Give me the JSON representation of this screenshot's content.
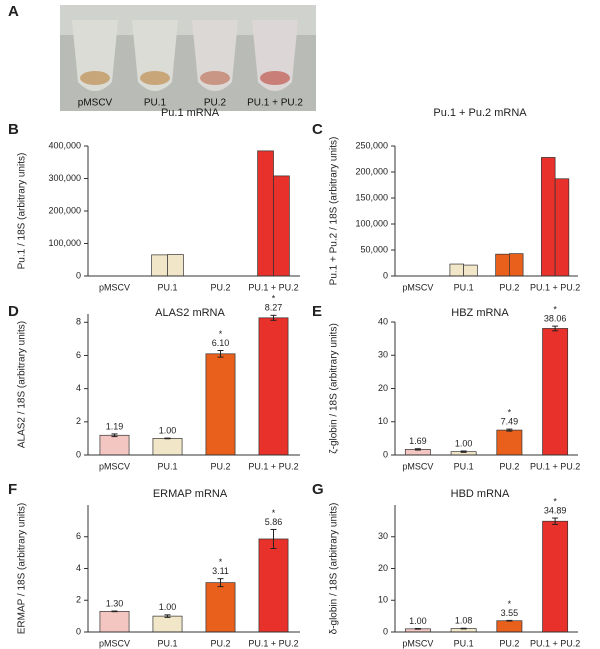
{
  "photo": {
    "panel": "A",
    "labels": [
      "pMSCV",
      "PU.1",
      "PU.2",
      "PU.1 + PU.2"
    ]
  },
  "chart_data": [
    {
      "type": "bar",
      "panel": "B",
      "title": "Pu.1 mRNA",
      "y_label": "Pu.1 / 18S (arbitrary units)",
      "categories": [
        "pMSCV",
        "PU.1",
        "PU.2",
        "PU.1 + PU.2"
      ],
      "colors": [
        "#f4c6c2",
        "#f2e6c8",
        "#e8601c",
        "#e8312a"
      ],
      "values": [
        [
          0,
          0
        ],
        [
          65000,
          66000
        ],
        [
          0,
          0
        ],
        [
          385000,
          308000
        ]
      ],
      "ylim": [
        0,
        400000
      ],
      "yticks": [
        0,
        {
          "value": 100000,
          "label": "100,000"
        },
        {
          "value": 200000,
          "label": "200,000"
        },
        {
          "value": 300000,
          "label": "300,000"
        },
        {
          "value": 400000,
          "label": "400,000"
        }
      ]
    },
    {
      "type": "bar",
      "panel": "C",
      "title": "Pu.1 + Pu.2 mRNA",
      "y_label": "Pu.1 + Pu.2 / 18S (arbitrary units)",
      "categories": [
        "pMSCV",
        "PU.1",
        "PU.2",
        "PU.1 + PU.2"
      ],
      "colors": [
        "#f4c6c2",
        "#f2e6c8",
        "#e8601c",
        "#e8312a"
      ],
      "values": [
        [
          0,
          0
        ],
        [
          23000,
          21000
        ],
        [
          42000,
          43000
        ],
        [
          228000,
          187000
        ]
      ],
      "ylim": [
        0,
        250000
      ],
      "yticks": [
        0,
        {
          "value": 50000,
          "label": "50,000"
        },
        {
          "value": 100000,
          "label": "100,000"
        },
        {
          "value": 150000,
          "label": "150,000"
        },
        {
          "value": 200000,
          "label": "200,000"
        },
        {
          "value": 250000,
          "label": "250,000"
        }
      ]
    },
    {
      "type": "bar",
      "panel": "D",
      "title": "ALAS2 mRNA",
      "y_label": "ALAS2 / 18S (arbitrary units)",
      "categories": [
        "pMSCV",
        "PU.1",
        "PU.2",
        "PU.1 + PU.2"
      ],
      "colors": [
        "#f4c6c2",
        "#f2e6c8",
        "#e8601c",
        "#e8312a"
      ],
      "values": [
        1.19,
        1.0,
        6.1,
        8.27
      ],
      "value_labels": [
        "1.19",
        "1.00",
        "6.10",
        "8.27"
      ],
      "errors": [
        0.08,
        0.02,
        0.2,
        0.15
      ],
      "marker": "*",
      "significant": [
        false,
        false,
        true,
        true
      ],
      "ylim": [
        0,
        8.5
      ],
      "yticks": [
        0,
        2,
        4,
        6,
        8
      ]
    },
    {
      "type": "bar",
      "panel": "E",
      "title": "HBZ mRNA",
      "y_label": "ζ-globin / 18S (arbitrary units)",
      "categories": [
        "pMSCV",
        "PU.1",
        "PU.2",
        "PU.1 + PU.2"
      ],
      "colors": [
        "#f4c6c2",
        "#f2e6c8",
        "#e8601c",
        "#e8312a"
      ],
      "values": [
        1.69,
        1.0,
        7.49,
        38.06
      ],
      "value_labels": [
        "1.69",
        "1.00",
        "7.49",
        "38.06"
      ],
      "errors": [
        0.2,
        0.2,
        0.3,
        0.7
      ],
      "marker": "*",
      "significant": [
        false,
        false,
        true,
        true
      ],
      "ylim": [
        0,
        40
      ],
      "yticks": [
        0,
        10,
        20,
        30,
        40
      ]
    },
    {
      "type": "bar",
      "panel": "F",
      "title": "ERMAP mRNA",
      "y_label": "ERMAP / 18S (arbitrary units)",
      "categories": [
        "pMSCV",
        "PU.1",
        "PU.2",
        "PU.1 + PU.2"
      ],
      "colors": [
        "#f4c6c2",
        "#f2e6c8",
        "#e8601c",
        "#e8312a"
      ],
      "values": [
        1.3,
        1.0,
        3.11,
        5.86
      ],
      "value_labels": [
        "1.30",
        "1.00",
        "3.11",
        "5.86"
      ],
      "errors": [
        0.02,
        0.08,
        0.25,
        0.6
      ],
      "marker": "*",
      "significant": [
        false,
        false,
        true,
        true
      ],
      "ylim": [
        0,
        8
      ],
      "yticks": [
        0,
        2,
        4,
        6
      ]
    },
    {
      "type": "bar",
      "panel": "G",
      "title": "HBD mRNA",
      "y_label": "δ-globin / 18S (arbitrary units)",
      "categories": [
        "pMSCV",
        "PU.1",
        "PU.2",
        "PU.1 + PU.2"
      ],
      "colors": [
        "#f4c6c2",
        "#f2e6c8",
        "#e8601c",
        "#e8312a"
      ],
      "values": [
        1.0,
        1.08,
        3.55,
        34.89
      ],
      "value_labels": [
        "1.00",
        "1.08",
        "3.55",
        "34.89"
      ],
      "errors": [
        0.1,
        0.1,
        0.1,
        1.0
      ],
      "marker": "*",
      "significant": [
        false,
        false,
        true,
        true
      ],
      "ylim": [
        0,
        40
      ],
      "yticks": [
        0,
        10,
        20,
        30
      ]
    }
  ]
}
